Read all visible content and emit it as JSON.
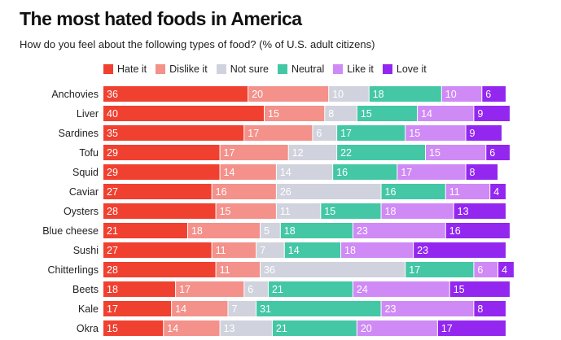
{
  "chart_data": {
    "type": "bar",
    "orientation": "horizontal",
    "stacked": true,
    "title": "The most hated foods in America",
    "subtitle": "How do you feel about the following types of food? (% of U.S. adult citizens)",
    "categories": [
      "Anchovies",
      "Liver",
      "Sardines",
      "Tofu",
      "Squid",
      "Caviar",
      "Oysters",
      "Blue cheese",
      "Sushi",
      "Chitterlings",
      "Beets",
      "Kale",
      "Okra"
    ],
    "series": [
      {
        "name": "Hate it",
        "color": "#f04030",
        "values": [
          36,
          40,
          35,
          29,
          29,
          27,
          28,
          21,
          27,
          28,
          18,
          17,
          15
        ]
      },
      {
        "name": "Dislike it",
        "color": "#f3918a",
        "values": [
          20,
          15,
          17,
          17,
          14,
          16,
          15,
          18,
          11,
          11,
          17,
          14,
          14
        ]
      },
      {
        "name": "Not sure",
        "color": "#d0d3dd",
        "values": [
          10,
          8,
          6,
          12,
          14,
          26,
          11,
          5,
          7,
          36,
          6,
          7,
          13
        ]
      },
      {
        "name": "Neutral",
        "color": "#43c7a5",
        "values": [
          18,
          15,
          17,
          22,
          16,
          16,
          15,
          18,
          14,
          17,
          21,
          31,
          21
        ]
      },
      {
        "name": "Like it",
        "color": "#cf8af6",
        "values": [
          10,
          14,
          15,
          15,
          17,
          11,
          18,
          23,
          18,
          6,
          24,
          23,
          20
        ]
      },
      {
        "name": "Love it",
        "color": "#9327f0",
        "values": [
          6,
          9,
          9,
          6,
          8,
          4,
          13,
          16,
          23,
          4,
          15,
          8,
          17
        ]
      }
    ],
    "label_color": "#ffffff",
    "xlim": [
      0,
      100
    ],
    "grid": false,
    "legend": "top"
  }
}
